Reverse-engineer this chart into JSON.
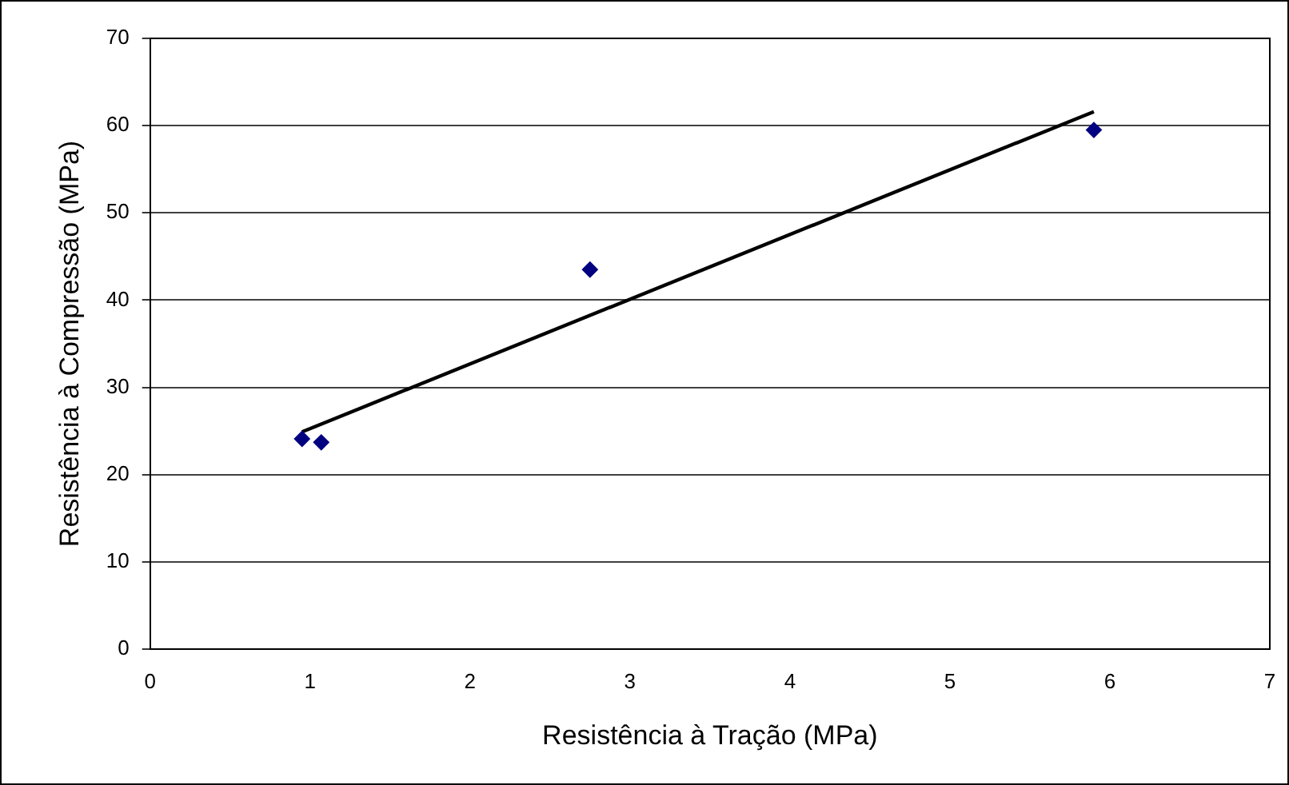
{
  "chart_data": {
    "type": "scatter",
    "xlabel": "Resistência à Tração (MPa)",
    "ylabel": "Resistência à Compressão (MPa)",
    "xlim": [
      0,
      7
    ],
    "xticks": [
      0,
      1,
      2,
      3,
      4,
      5,
      6,
      7
    ],
    "ylim": [
      0,
      70
    ],
    "yticks": [
      0,
      10,
      20,
      30,
      40,
      50,
      60,
      70
    ],
    "grid": "y",
    "legend": false,
    "series": [
      {
        "marker": "diamond",
        "color": "#000080",
        "x": [
          0.95,
          1.07,
          2.75,
          5.9
        ],
        "values": [
          24.1,
          23.7,
          43.5,
          59.5
        ]
      },
      {
        "type": "line",
        "marker": "none",
        "color": "#000000",
        "x": [
          0.95,
          5.9
        ],
        "values": [
          24.9,
          61.6
        ]
      }
    ]
  }
}
